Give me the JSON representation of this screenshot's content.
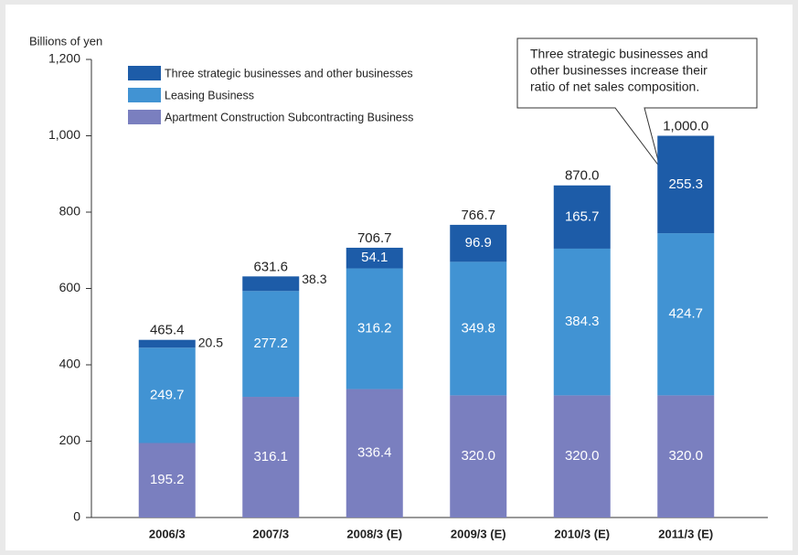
{
  "chart_data": {
    "type": "stacked_bar",
    "y_label": "Billions of yen",
    "categories": [
      "2006/3",
      "2007/3",
      "2008/3 (E)",
      "2009/3 (E)",
      "2010/3 (E)",
      "2011/3 (E)"
    ],
    "series": [
      {
        "name": "Apartment Construction Subcontracting Business",
        "color": "#7a7fbf",
        "values": [
          195.2,
          316.1,
          336.4,
          320,
          320,
          320
        ],
        "value_labels": [
          "195.2",
          "316.1",
          "336.4",
          "320.0",
          "320.0",
          "320.0"
        ]
      },
      {
        "name": "Leasing Business",
        "color": "#4193d3",
        "values": [
          249.7,
          277.2,
          316.2,
          349.8,
          384.3,
          424.7
        ],
        "value_labels": [
          "249.7",
          "277.2",
          "316.2",
          "349.8",
          "384.3",
          "424.7"
        ]
      },
      {
        "name": "Three strategic businesses and other businesses",
        "color": "#1d5ca8",
        "values": [
          20.5,
          38.3,
          54.1,
          96.9,
          165.7,
          255.3
        ],
        "value_labels": [
          "20.5",
          "38.3",
          "54.1",
          "96.9",
          "165.7",
          "255.3"
        ]
      }
    ],
    "totals": [
      465.4,
      631.6,
      706.7,
      766.7,
      870,
      1000
    ],
    "total_labels": [
      "465.4",
      "631.6",
      "706.7",
      "766.7",
      "870.0",
      "1,000.0"
    ],
    "ylim": [
      0,
      1200
    ],
    "yticks": [
      0,
      200,
      400,
      600,
      800,
      {
        "value": 1000,
        "label": "1,000"
      },
      {
        "value": 1200,
        "label": "1,200"
      }
    ],
    "annotation": [
      "Three strategic businesses and",
      "other businesses increase their",
      "ratio of net sales composition."
    ]
  }
}
